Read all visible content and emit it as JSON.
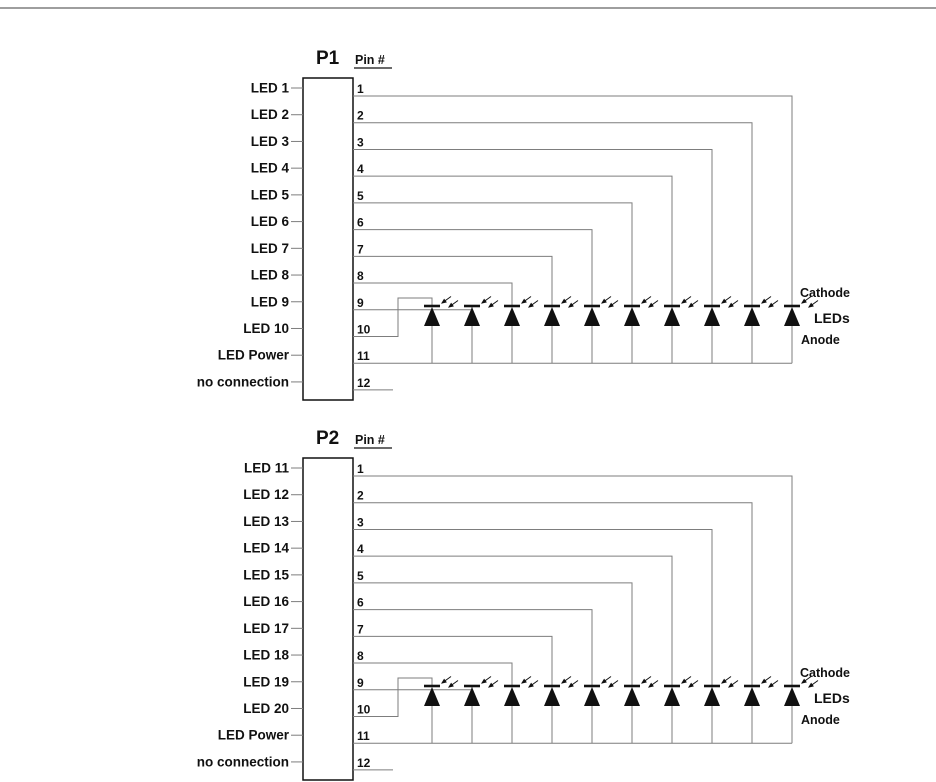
{
  "diagram": {
    "ink_color": "#111111",
    "wire_color": "#7d7d7d",
    "border_color": "#3c3c3c",
    "connectors": [
      {
        "name": "P1",
        "pin_header": "Pin #",
        "led_count": 10,
        "pins": [
          {
            "num": "1",
            "label": "LED 1"
          },
          {
            "num": "2",
            "label": "LED 2"
          },
          {
            "num": "3",
            "label": "LED 3"
          },
          {
            "num": "4",
            "label": "LED 4"
          },
          {
            "num": "5",
            "label": "LED 5"
          },
          {
            "num": "6",
            "label": "LED 6"
          },
          {
            "num": "7",
            "label": "LED 7"
          },
          {
            "num": "8",
            "label": "LED 8"
          },
          {
            "num": "9",
            "label": "LED 9"
          },
          {
            "num": "10",
            "label": "LED 10"
          },
          {
            "num": "11",
            "label": "LED Power"
          },
          {
            "num": "12",
            "label": "no connection"
          }
        ],
        "labels": {
          "cathode": "Cathode",
          "leds": "LEDs",
          "anode": "Anode"
        }
      },
      {
        "name": "P2",
        "pin_header": "Pin #",
        "led_count": 10,
        "pins": [
          {
            "num": "1",
            "label": "LED 11"
          },
          {
            "num": "2",
            "label": "LED 12"
          },
          {
            "num": "3",
            "label": "LED 13"
          },
          {
            "num": "4",
            "label": "LED 14"
          },
          {
            "num": "5",
            "label": "LED 15"
          },
          {
            "num": "6",
            "label": "LED 16"
          },
          {
            "num": "7",
            "label": "LED 17"
          },
          {
            "num": "8",
            "label": "LED 18"
          },
          {
            "num": "9",
            "label": "LED 19"
          },
          {
            "num": "10",
            "label": "LED 20"
          },
          {
            "num": "11",
            "label": "LED Power"
          },
          {
            "num": "12",
            "label": "no connection"
          }
        ],
        "labels": {
          "cathode": "Cathode",
          "leds": "LEDs",
          "anode": "Anode"
        }
      }
    ]
  }
}
